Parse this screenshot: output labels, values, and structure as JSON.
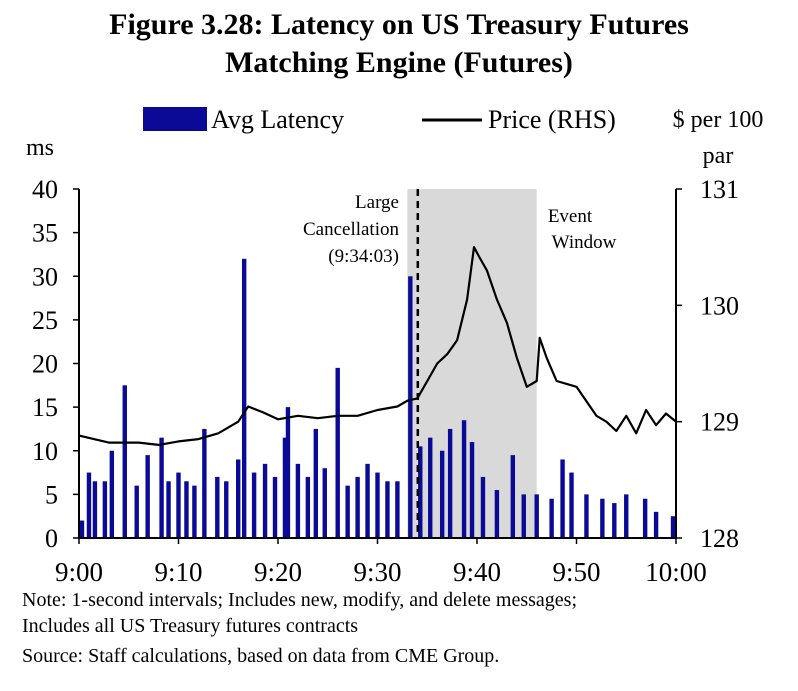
{
  "title_line1": "Figure 3.28: Latency on US Treasury Futures",
  "title_line2": "Matching Engine (Futures)",
  "notes": [
    "Note: 1-second intervals; Includes new, modify, and delete messages;",
    "Includes all US Treasury futures contracts",
    "Source: Staff calculations, based on data from  CME Group."
  ],
  "chart_data": {
    "type": "bar",
    "title": "Figure 3.28: Latency on US Treasury Futures Matching Engine (Futures)",
    "legend": {
      "placement": "top",
      "entries": [
        "Avg Latency",
        "Price (RHS)"
      ]
    },
    "x_axis": {
      "tick_labels": [
        "9:00",
        "9:10",
        "9:20",
        "9:30",
        "9:40",
        "9:50",
        "10:00"
      ],
      "range_minutes_after_9": [
        0,
        60
      ]
    },
    "y_left": {
      "label": "ms",
      "range": [
        0,
        40
      ],
      "tick_labels": [
        "0",
        "5",
        "10",
        "15",
        "20",
        "25",
        "30",
        "35",
        "40"
      ]
    },
    "y_right": {
      "label_line1": "$ per 100",
      "label_line2": "par",
      "range": [
        128,
        131
      ],
      "tick_labels": [
        "128",
        "129",
        "130",
        "131"
      ]
    },
    "grid": false,
    "annotations": {
      "cancellation_line1": "Large",
      "cancellation_line2": "Cancellation",
      "cancellation_line3": "(9:34:03)",
      "cancellation_time": "9:34:03",
      "event_line1": "Event",
      "event_line2": "Window",
      "event_window_start": "9:33",
      "event_window_end": "9:46"
    },
    "series": [
      {
        "name": "Avg Latency",
        "type": "bar",
        "axis": "left",
        "color": "#0a0a96",
        "spikes": [
          {
            "time": "9:00.3",
            "value": 2
          },
          {
            "time": "9:01.0",
            "value": 7.5
          },
          {
            "time": "9:01.6",
            "value": 6.5
          },
          {
            "time": "9:02.6",
            "value": 6.5
          },
          {
            "time": "9:03.3",
            "value": 10
          },
          {
            "time": "9:04.6",
            "value": 17.5
          },
          {
            "time": "9:05.8",
            "value": 6
          },
          {
            "time": "9:06.9",
            "value": 9.5
          },
          {
            "time": "9:08.3",
            "value": 11.5
          },
          {
            "time": "9:09.0",
            "value": 6.5
          },
          {
            "time": "9:10.0",
            "value": 7.5
          },
          {
            "time": "9:10.8",
            "value": 6.5
          },
          {
            "time": "9:11.6",
            "value": 6
          },
          {
            "time": "9:12.6",
            "value": 12.5
          },
          {
            "time": "9:13.9",
            "value": 7
          },
          {
            "time": "9:14.8",
            "value": 6.5
          },
          {
            "time": "9:16.0",
            "value": 9
          },
          {
            "time": "9:16.6",
            "value": 32
          },
          {
            "time": "9:17.6",
            "value": 7.5
          },
          {
            "time": "9:18.7",
            "value": 8.5
          },
          {
            "time": "9:19.7",
            "value": 7
          },
          {
            "time": "9:20.7",
            "value": 11.5
          },
          {
            "time": "9:21.0",
            "value": 15
          },
          {
            "time": "9:22.0",
            "value": 8.5
          },
          {
            "time": "9:23.0",
            "value": 7
          },
          {
            "time": "9:23.8",
            "value": 12.5
          },
          {
            "time": "9:24.7",
            "value": 8
          },
          {
            "time": "9:26.0",
            "value": 19.5
          },
          {
            "time": "9:27.0",
            "value": 6
          },
          {
            "time": "9:28.0",
            "value": 7
          },
          {
            "time": "9:29.0",
            "value": 8.5
          },
          {
            "time": "9:30.0",
            "value": 7.5
          },
          {
            "time": "9:31.0",
            "value": 6.5
          },
          {
            "time": "9:32.0",
            "value": 6.5
          },
          {
            "time": "9:33.3",
            "value": 30
          },
          {
            "time": "9:34.3",
            "value": 10.5
          },
          {
            "time": "9:35.3",
            "value": 11.5
          },
          {
            "time": "9:36.5",
            "value": 10
          },
          {
            "time": "9:37.3",
            "value": 12.5
          },
          {
            "time": "9:38.7",
            "value": 13.5
          },
          {
            "time": "9:39.5",
            "value": 11
          },
          {
            "time": "9:40.6",
            "value": 7
          },
          {
            "time": "9:42.0",
            "value": 5.5
          },
          {
            "time": "9:43.6",
            "value": 9.5
          },
          {
            "time": "9:44.7",
            "value": 5
          },
          {
            "time": "9:46.0",
            "value": 5
          },
          {
            "time": "9:47.5",
            "value": 4.5
          },
          {
            "time": "9:48.6",
            "value": 9
          },
          {
            "time": "9:49.5",
            "value": 7.5
          },
          {
            "time": "9:51.0",
            "value": 5
          },
          {
            "time": "9:52.6",
            "value": 4.5
          },
          {
            "time": "9:53.8",
            "value": 4
          },
          {
            "time": "9:55.0",
            "value": 5
          },
          {
            "time": "9:56.9",
            "value": 4.5
          },
          {
            "time": "9:58.0",
            "value": 3
          },
          {
            "time": "9:59.7",
            "value": 2.5
          }
        ]
      },
      {
        "name": "Price (RHS)",
        "type": "line",
        "axis": "right",
        "color": "#000000",
        "points": [
          {
            "time": "9:00",
            "value": 128.88
          },
          {
            "time": "9:03",
            "value": 128.82
          },
          {
            "time": "9:06",
            "value": 128.82
          },
          {
            "time": "9:08",
            "value": 128.8
          },
          {
            "time": "9:10",
            "value": 128.83
          },
          {
            "time": "9:12",
            "value": 128.85
          },
          {
            "time": "9:14",
            "value": 128.9
          },
          {
            "time": "9:16",
            "value": 129.0
          },
          {
            "time": "9:17",
            "value": 129.13
          },
          {
            "time": "9:18.5",
            "value": 129.08
          },
          {
            "time": "9:20",
            "value": 129.02
          },
          {
            "time": "9:22",
            "value": 129.05
          },
          {
            "time": "9:24",
            "value": 129.03
          },
          {
            "time": "9:26",
            "value": 129.05
          },
          {
            "time": "9:28",
            "value": 129.05
          },
          {
            "time": "9:30",
            "value": 129.1
          },
          {
            "time": "9:32",
            "value": 129.13
          },
          {
            "time": "9:33",
            "value": 129.18
          },
          {
            "time": "9:34",
            "value": 129.2
          },
          {
            "time": "9:35",
            "value": 129.35
          },
          {
            "time": "9:36",
            "value": 129.5
          },
          {
            "time": "9:37",
            "value": 129.58
          },
          {
            "time": "9:38",
            "value": 129.7
          },
          {
            "time": "9:39",
            "value": 130.05
          },
          {
            "time": "9:39.7",
            "value": 130.5
          },
          {
            "time": "9:40.2",
            "value": 130.42
          },
          {
            "time": "9:41",
            "value": 130.3
          },
          {
            "time": "9:42",
            "value": 130.05
          },
          {
            "time": "9:43",
            "value": 129.85
          },
          {
            "time": "9:44",
            "value": 129.55
          },
          {
            "time": "9:45",
            "value": 129.3
          },
          {
            "time": "9:46",
            "value": 129.35
          },
          {
            "time": "9:46.3",
            "value": 129.72
          },
          {
            "time": "9:47",
            "value": 129.55
          },
          {
            "time": "9:48",
            "value": 129.35
          },
          {
            "time": "9:50",
            "value": 129.3
          },
          {
            "time": "9:52",
            "value": 129.05
          },
          {
            "time": "9:53",
            "value": 129.0
          },
          {
            "time": "9:54",
            "value": 128.92
          },
          {
            "time": "9:55",
            "value": 129.05
          },
          {
            "time": "9:56",
            "value": 128.9
          },
          {
            "time": "9:57",
            "value": 129.1
          },
          {
            "time": "9:58",
            "value": 128.97
          },
          {
            "time": "9:59",
            "value": 129.07
          },
          {
            "time": "10:00",
            "value": 129.0
          }
        ]
      }
    ]
  }
}
